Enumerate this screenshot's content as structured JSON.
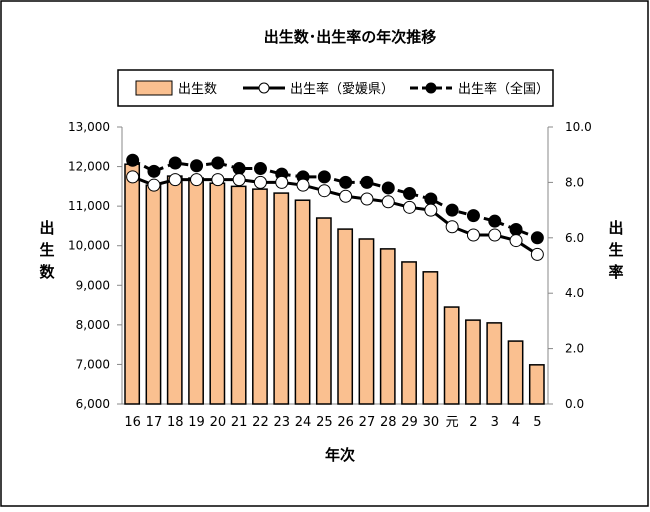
{
  "chart_data": {
    "type": "bar+line",
    "title": "出生数･出生率の年次推移",
    "xlabel": "年次",
    "ylabel_left": "出生数",
    "ylabel_right": "出生率",
    "categories": [
      "16",
      "17",
      "18",
      "19",
      "20",
      "21",
      "22",
      "23",
      "24",
      "25",
      "26",
      "27",
      "28",
      "29",
      "30",
      "元",
      "2",
      "3",
      "4",
      "5"
    ],
    "left_ticks": [
      "6,000",
      "7,000",
      "8,000",
      "9,000",
      "10,000",
      "11,000",
      "12,000",
      "13,000"
    ],
    "right_ticks": [
      "0.0",
      "2.0",
      "4.0",
      "6.0",
      "8.0",
      "10.0"
    ],
    "ylim_left": [
      6000,
      13000
    ],
    "ylim_right": [
      0,
      10
    ],
    "legend_position": "top",
    "series": [
      {
        "name": "出生数",
        "type": "bar",
        "axis": "left",
        "color": "#FAC090",
        "values": [
          12060,
          11530,
          11760,
          11710,
          11580,
          11500,
          11430,
          11330,
          11150,
          10700,
          10420,
          10170,
          9920,
          9590,
          9340,
          8450,
          8120,
          8050,
          7590,
          6990
        ]
      },
      {
        "name": "出生率（愛媛県）",
        "type": "line",
        "axis": "right",
        "marker": "open-circle",
        "values": [
          8.2,
          7.9,
          8.1,
          8.1,
          8.1,
          8.1,
          8.0,
          8.0,
          7.9,
          7.7,
          7.5,
          7.4,
          7.3,
          7.1,
          7.0,
          6.4,
          6.1,
          6.1,
          5.9,
          5.4
        ]
      },
      {
        "name": "出生率（全国）",
        "type": "line",
        "axis": "right",
        "marker": "filled-circle",
        "dash": true,
        "values": [
          8.8,
          8.4,
          8.7,
          8.6,
          8.7,
          8.5,
          8.5,
          8.3,
          8.2,
          8.2,
          8.0,
          8.0,
          7.8,
          7.6,
          7.4,
          7.0,
          6.8,
          6.6,
          6.3,
          6.0
        ]
      }
    ]
  }
}
